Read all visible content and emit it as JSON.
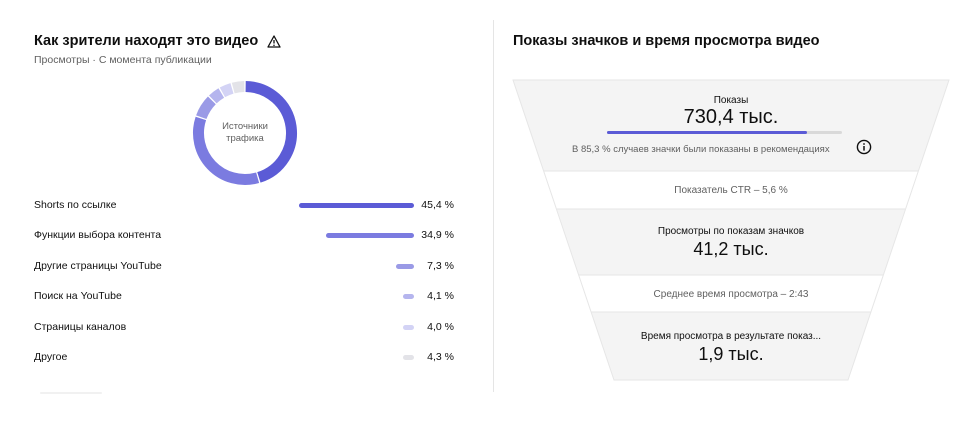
{
  "traffic": {
    "title": "Как зрители находят это видео",
    "subtitle": "Просмотры · С момента публикации",
    "donut_center_line1": "Источники",
    "donut_center_line2": "трафика",
    "sources": [
      {
        "label": "Shorts по ссылке",
        "value": "45,4 %",
        "pct": 45.4,
        "color": "#5b5bd6"
      },
      {
        "label": "Функции выбора контента",
        "value": "34,9 %",
        "pct": 34.9,
        "color": "#7b7be0"
      },
      {
        "label": "Другие страницы YouTube",
        "value": "7,3 %",
        "pct": 7.3,
        "color": "#9a9ae6"
      },
      {
        "label": "Поиск на YouTube",
        "value": "4,1 %",
        "pct": 4.1,
        "color": "#b5b5ee"
      },
      {
        "label": "Страницы каналов",
        "value": "4,0 %",
        "pct": 4.0,
        "color": "#d3d3f5"
      },
      {
        "label": "Другое",
        "value": "4,3 %",
        "pct": 4.3,
        "color": "#e3e3e8"
      }
    ]
  },
  "funnel": {
    "title": "Показы значков и время просмотра видео",
    "impressions_label": "Показы",
    "impressions_value": "730,4 тыс.",
    "impressions_recommended_share": 0.853,
    "impressions_note": "В 85,3 % случаев значки были показаны в рекомендациях",
    "ctr_label": "Показатель CTR – 5,6 %",
    "views_label": "Просмотры по показам значков",
    "views_value": "41,2 тыс.",
    "avg_watch_label": "Среднее время просмотра – 2:43",
    "watch_time_label": "Время просмотра в результате показ...",
    "watch_time_value": "1,9 тыс."
  }
}
